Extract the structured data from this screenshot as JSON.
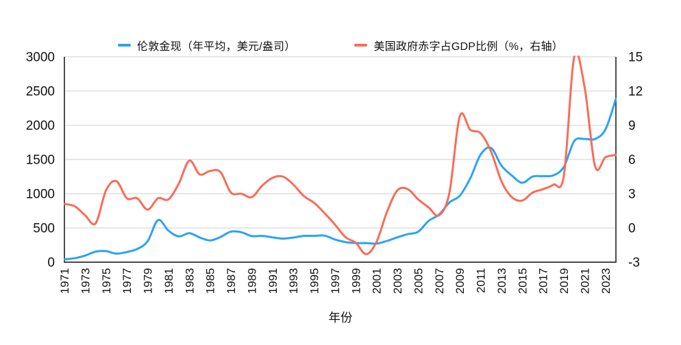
{
  "legend": {
    "items": [
      {
        "label": "伦敦金现（年平均，美元/盎司）",
        "color": "#29a3f4"
      },
      {
        "label": "美国政府赤字占GDP比例（%，右轴）",
        "color": "#fa6b57"
      }
    ]
  },
  "xlabel": "年份",
  "chart_data": {
    "type": "line",
    "title": "",
    "x": [
      1971,
      1972,
      1973,
      1974,
      1975,
      1976,
      1977,
      1978,
      1979,
      1980,
      1981,
      1982,
      1983,
      1984,
      1985,
      1986,
      1987,
      1988,
      1989,
      1990,
      1991,
      1992,
      1993,
      1994,
      1995,
      1996,
      1997,
      1998,
      1999,
      2000,
      2001,
      2002,
      2003,
      2004,
      2005,
      2006,
      2007,
      2008,
      2009,
      2010,
      2011,
      2012,
      2013,
      2014,
      2015,
      2016,
      2017,
      2018,
      2019,
      2020,
      2021,
      2022,
      2023,
      2024
    ],
    "x_tick_labels": [
      "1971",
      "1973",
      "1975",
      "1977",
      "1979",
      "1981",
      "1983",
      "1985",
      "1987",
      "1989",
      "1991",
      "1993",
      "1995",
      "1997",
      "1999",
      "2001",
      "2003",
      "2005",
      "2007",
      "2009",
      "2011",
      "2013",
      "2015",
      "2017",
      "2019",
      "2021",
      "2023"
    ],
    "series": [
      {
        "name": "伦敦金现（年平均，美元/盎司）",
        "axis": "left",
        "color": "#29a3f4",
        "values": [
          41,
          58,
          97,
          154,
          161,
          125,
          148,
          193,
          306,
          615,
          460,
          376,
          424,
          361,
          317,
          368,
          447,
          437,
          381,
          384,
          362,
          344,
          360,
          384,
          384,
          388,
          331,
          294,
          279,
          279,
          271,
          310,
          363,
          409,
          445,
          604,
          695,
          872,
          972,
          1225,
          1572,
          1669,
          1411,
          1266,
          1160,
          1251,
          1257,
          1269,
          1393,
          1770,
          1799,
          1800,
          1941,
          2387
        ]
      },
      {
        "name": "美国政府赤字占GDP比例（%，右轴）",
        "axis": "right",
        "color": "#fa6b57",
        "values": [
          2.1,
          1.9,
          1.1,
          0.4,
          3.3,
          4.1,
          2.6,
          2.6,
          1.6,
          2.6,
          2.5,
          3.9,
          5.9,
          4.7,
          5.0,
          4.9,
          3.1,
          3.0,
          2.7,
          3.7,
          4.4,
          4.5,
          3.8,
          2.8,
          2.2,
          1.3,
          0.3,
          -0.8,
          -1.3,
          -2.3,
          -1.2,
          1.4,
          3.3,
          3.4,
          2.5,
          1.8,
          1.1,
          3.1,
          9.8,
          8.6,
          8.3,
          6.7,
          4.1,
          2.7,
          2.4,
          3.1,
          3.4,
          3.8,
          4.6,
          15.0,
          12.3,
          5.4,
          6.2,
          6.4
        ]
      }
    ],
    "left_axis": {
      "ticks": [
        0,
        500,
        1000,
        1500,
        2000,
        2500,
        3000
      ],
      "range": [
        0,
        3000
      ]
    },
    "right_axis": {
      "ticks": [
        -3,
        0,
        3,
        6,
        9,
        12,
        15
      ],
      "range": [
        -3,
        15
      ]
    },
    "xlabel": "年份",
    "grid": "horizontal",
    "legend_position": "top",
    "line_smoothing": true,
    "colors": {
      "grid": "#cfcfcf",
      "frame": "#2e2e2e",
      "text": "#111111",
      "background": "#ffffff"
    }
  }
}
